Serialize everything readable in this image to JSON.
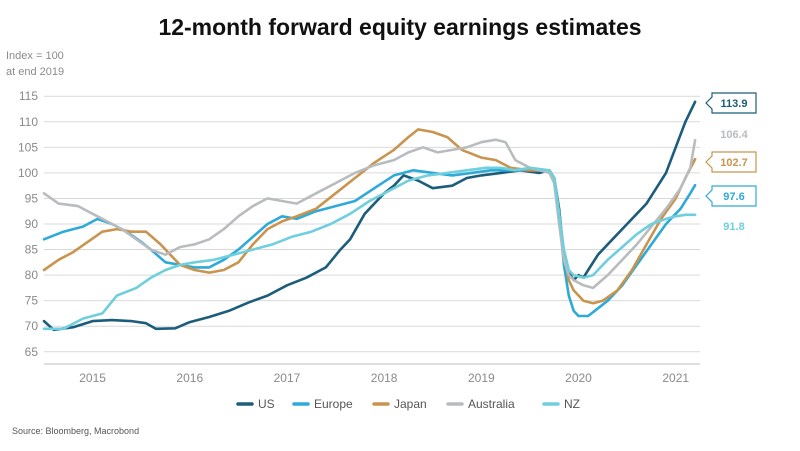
{
  "chart_data": {
    "type": "line",
    "title": "12-month forward equity earnings estimates",
    "ylabel_line1": "Index = 100",
    "ylabel_line2": "at end 2019",
    "xlabel": "",
    "ylim": [
      63,
      117
    ],
    "xlim": [
      2014.5,
      2021.25
    ],
    "yticks": [
      65,
      70,
      75,
      80,
      85,
      90,
      95,
      100,
      105,
      110,
      115
    ],
    "xticks": [
      2015,
      2016,
      2017,
      2018,
      2019,
      2020,
      2021
    ],
    "xtick_labels": [
      "2015",
      "2016",
      "2017",
      "2018",
      "2019",
      "2020",
      "2021"
    ],
    "grid": true,
    "legend_position": "bottom",
    "source": "Source: Bloomberg, Macrobond",
    "series": [
      {
        "name": "US",
        "color": "#1b5d7a",
        "end_label": "113.9",
        "label_style": "box",
        "points": [
          [
            2014.5,
            71
          ],
          [
            2014.6,
            69.3
          ],
          [
            2014.8,
            69.8
          ],
          [
            2015.0,
            71
          ],
          [
            2015.2,
            71.2
          ],
          [
            2015.4,
            71
          ],
          [
            2015.55,
            70.6
          ],
          [
            2015.65,
            69.5
          ],
          [
            2015.85,
            69.6
          ],
          [
            2016.0,
            70.8
          ],
          [
            2016.2,
            71.8
          ],
          [
            2016.4,
            73
          ],
          [
            2016.6,
            74.6
          ],
          [
            2016.8,
            76
          ],
          [
            2017.0,
            78
          ],
          [
            2017.2,
            79.5
          ],
          [
            2017.4,
            81.5
          ],
          [
            2017.55,
            85
          ],
          [
            2017.65,
            87
          ],
          [
            2017.8,
            92
          ],
          [
            2018.0,
            96
          ],
          [
            2018.1,
            97.5
          ],
          [
            2018.2,
            99.5
          ],
          [
            2018.35,
            98.5
          ],
          [
            2018.5,
            97
          ],
          [
            2018.7,
            97.5
          ],
          [
            2018.85,
            99
          ],
          [
            2019.0,
            99.5
          ],
          [
            2019.2,
            100
          ],
          [
            2019.4,
            100.5
          ],
          [
            2019.6,
            100
          ],
          [
            2019.7,
            100.5
          ],
          [
            2019.75,
            99
          ],
          [
            2019.8,
            93
          ],
          [
            2019.85,
            84
          ],
          [
            2019.9,
            80.5
          ],
          [
            2019.95,
            79
          ],
          [
            2020.0,
            80
          ],
          [
            2020.05,
            79.5
          ],
          [
            2020.1,
            81
          ],
          [
            2020.2,
            84
          ],
          [
            2020.35,
            87
          ],
          [
            2020.5,
            90
          ],
          [
            2020.6,
            92
          ],
          [
            2020.7,
            94
          ],
          [
            2020.8,
            97
          ],
          [
            2020.9,
            100
          ],
          [
            2021.0,
            105
          ],
          [
            2021.1,
            110
          ],
          [
            2021.2,
            113.9
          ]
        ]
      },
      {
        "name": "Europe",
        "color": "#2eaad8",
        "end_label": "97.6",
        "label_style": "box",
        "points": [
          [
            2014.5,
            87
          ],
          [
            2014.7,
            88.5
          ],
          [
            2014.9,
            89.5
          ],
          [
            2015.05,
            91
          ],
          [
            2015.2,
            90
          ],
          [
            2015.35,
            88.5
          ],
          [
            2015.5,
            86.5
          ],
          [
            2015.6,
            85
          ],
          [
            2015.75,
            82.5
          ],
          [
            2015.9,
            82
          ],
          [
            2016.05,
            81.5
          ],
          [
            2016.2,
            81.5
          ],
          [
            2016.35,
            83
          ],
          [
            2016.5,
            85
          ],
          [
            2016.65,
            87.5
          ],
          [
            2016.8,
            90
          ],
          [
            2016.95,
            91.5
          ],
          [
            2017.1,
            91
          ],
          [
            2017.3,
            92.5
          ],
          [
            2017.5,
            93.5
          ],
          [
            2017.7,
            94.5
          ],
          [
            2017.9,
            97
          ],
          [
            2018.1,
            99.5
          ],
          [
            2018.3,
            100.5
          ],
          [
            2018.5,
            100
          ],
          [
            2018.7,
            99.5
          ],
          [
            2018.9,
            100
          ],
          [
            2019.1,
            100.5
          ],
          [
            2019.3,
            100.5
          ],
          [
            2019.5,
            100.5
          ],
          [
            2019.7,
            100.5
          ],
          [
            2019.75,
            99
          ],
          [
            2019.8,
            92
          ],
          [
            2019.85,
            82
          ],
          [
            2019.9,
            76
          ],
          [
            2019.95,
            73
          ],
          [
            2020.0,
            72
          ],
          [
            2020.1,
            72
          ],
          [
            2020.2,
            73.5
          ],
          [
            2020.3,
            75
          ],
          [
            2020.45,
            78
          ],
          [
            2020.6,
            82
          ],
          [
            2020.75,
            86
          ],
          [
            2020.9,
            90
          ],
          [
            2021.05,
            93
          ],
          [
            2021.15,
            96
          ],
          [
            2021.2,
            97.6
          ]
        ]
      },
      {
        "name": "Japan",
        "color": "#c8944e",
        "end_label": "102.7",
        "label_style": "box",
        "points": [
          [
            2014.5,
            81
          ],
          [
            2014.65,
            83
          ],
          [
            2014.8,
            84.5
          ],
          [
            2014.95,
            86.5
          ],
          [
            2015.1,
            88.5
          ],
          [
            2015.25,
            89
          ],
          [
            2015.4,
            88.5
          ],
          [
            2015.55,
            88.5
          ],
          [
            2015.7,
            86
          ],
          [
            2015.8,
            84
          ],
          [
            2015.9,
            82
          ],
          [
            2016.05,
            81
          ],
          [
            2016.2,
            80.5
          ],
          [
            2016.35,
            81
          ],
          [
            2016.5,
            82.5
          ],
          [
            2016.65,
            86
          ],
          [
            2016.8,
            89
          ],
          [
            2016.95,
            90.5
          ],
          [
            2017.1,
            91.5
          ],
          [
            2017.3,
            93
          ],
          [
            2017.5,
            96
          ],
          [
            2017.7,
            99
          ],
          [
            2017.9,
            102
          ],
          [
            2018.1,
            104.5
          ],
          [
            2018.25,
            107
          ],
          [
            2018.35,
            108.5
          ],
          [
            2018.5,
            108
          ],
          [
            2018.65,
            107
          ],
          [
            2018.8,
            104.5
          ],
          [
            2019.0,
            103
          ],
          [
            2019.15,
            102.5
          ],
          [
            2019.3,
            101
          ],
          [
            2019.5,
            100.5
          ],
          [
            2019.7,
            100.5
          ],
          [
            2019.75,
            99
          ],
          [
            2019.8,
            92
          ],
          [
            2019.85,
            84
          ],
          [
            2019.9,
            79
          ],
          [
            2019.95,
            77
          ],
          [
            2020.05,
            75
          ],
          [
            2020.15,
            74.5
          ],
          [
            2020.25,
            75
          ],
          [
            2020.4,
            77
          ],
          [
            2020.55,
            81
          ],
          [
            2020.7,
            86
          ],
          [
            2020.85,
            91
          ],
          [
            2021.0,
            95
          ],
          [
            2021.1,
            99
          ],
          [
            2021.2,
            102.7
          ]
        ]
      },
      {
        "name": "Australia",
        "color": "#b9bcbe",
        "end_label": "106.4",
        "label_style": "plain",
        "points": [
          [
            2014.5,
            96
          ],
          [
            2014.65,
            94
          ],
          [
            2014.85,
            93.5
          ],
          [
            2015.0,
            92
          ],
          [
            2015.15,
            90.5
          ],
          [
            2015.3,
            89
          ],
          [
            2015.45,
            87
          ],
          [
            2015.6,
            85
          ],
          [
            2015.75,
            84
          ],
          [
            2015.9,
            85.5
          ],
          [
            2016.05,
            86
          ],
          [
            2016.2,
            87
          ],
          [
            2016.35,
            89
          ],
          [
            2016.5,
            91.5
          ],
          [
            2016.65,
            93.5
          ],
          [
            2016.8,
            95
          ],
          [
            2016.95,
            94.5
          ],
          [
            2017.1,
            94
          ],
          [
            2017.3,
            96
          ],
          [
            2017.5,
            98
          ],
          [
            2017.7,
            100
          ],
          [
            2017.9,
            101.5
          ],
          [
            2018.1,
            102.5
          ],
          [
            2018.25,
            104
          ],
          [
            2018.4,
            105
          ],
          [
            2018.55,
            104
          ],
          [
            2018.7,
            104.5
          ],
          [
            2018.85,
            105
          ],
          [
            2019.0,
            106
          ],
          [
            2019.15,
            106.5
          ],
          [
            2019.25,
            106
          ],
          [
            2019.35,
            102.5
          ],
          [
            2019.5,
            101
          ],
          [
            2019.7,
            100
          ],
          [
            2019.75,
            98
          ],
          [
            2019.8,
            90
          ],
          [
            2019.85,
            83
          ],
          [
            2019.9,
            80
          ],
          [
            2019.95,
            79
          ],
          [
            2020.05,
            78
          ],
          [
            2020.15,
            77.5
          ],
          [
            2020.3,
            80
          ],
          [
            2020.45,
            83
          ],
          [
            2020.6,
            86
          ],
          [
            2020.75,
            89.5
          ],
          [
            2020.9,
            93
          ],
          [
            2021.05,
            97
          ],
          [
            2021.15,
            101
          ],
          [
            2021.2,
            106.4
          ]
        ]
      },
      {
        "name": "NZ",
        "color": "#6fcfdd",
        "end_label": "91.8",
        "label_style": "plain",
        "points": [
          [
            2014.5,
            69.5
          ],
          [
            2014.7,
            69.5
          ],
          [
            2014.9,
            71.5
          ],
          [
            2015.1,
            72.5
          ],
          [
            2015.25,
            76
          ],
          [
            2015.45,
            77.5
          ],
          [
            2015.6,
            79.5
          ],
          [
            2015.75,
            81
          ],
          [
            2015.9,
            82
          ],
          [
            2016.05,
            82.5
          ],
          [
            2016.25,
            83
          ],
          [
            2016.45,
            84
          ],
          [
            2016.65,
            85
          ],
          [
            2016.85,
            86
          ],
          [
            2017.05,
            87.5
          ],
          [
            2017.25,
            88.5
          ],
          [
            2017.45,
            90
          ],
          [
            2017.65,
            92
          ],
          [
            2017.85,
            94.5
          ],
          [
            2018.05,
            96.5
          ],
          [
            2018.25,
            98.5
          ],
          [
            2018.45,
            99.5
          ],
          [
            2018.65,
            100
          ],
          [
            2018.85,
            100.5
          ],
          [
            2019.05,
            101
          ],
          [
            2019.2,
            101
          ],
          [
            2019.35,
            100.5
          ],
          [
            2019.5,
            101
          ],
          [
            2019.7,
            100.5
          ],
          [
            2019.75,
            99
          ],
          [
            2019.8,
            92
          ],
          [
            2019.85,
            85
          ],
          [
            2019.9,
            81
          ],
          [
            2019.95,
            80
          ],
          [
            2020.05,
            79.5
          ],
          [
            2020.15,
            80
          ],
          [
            2020.3,
            83
          ],
          [
            2020.45,
            85.5
          ],
          [
            2020.6,
            88
          ],
          [
            2020.75,
            90
          ],
          [
            2020.9,
            91
          ],
          [
            2021.0,
            91.5
          ],
          [
            2021.1,
            91.8
          ],
          [
            2021.2,
            91.8
          ]
        ]
      }
    ]
  }
}
